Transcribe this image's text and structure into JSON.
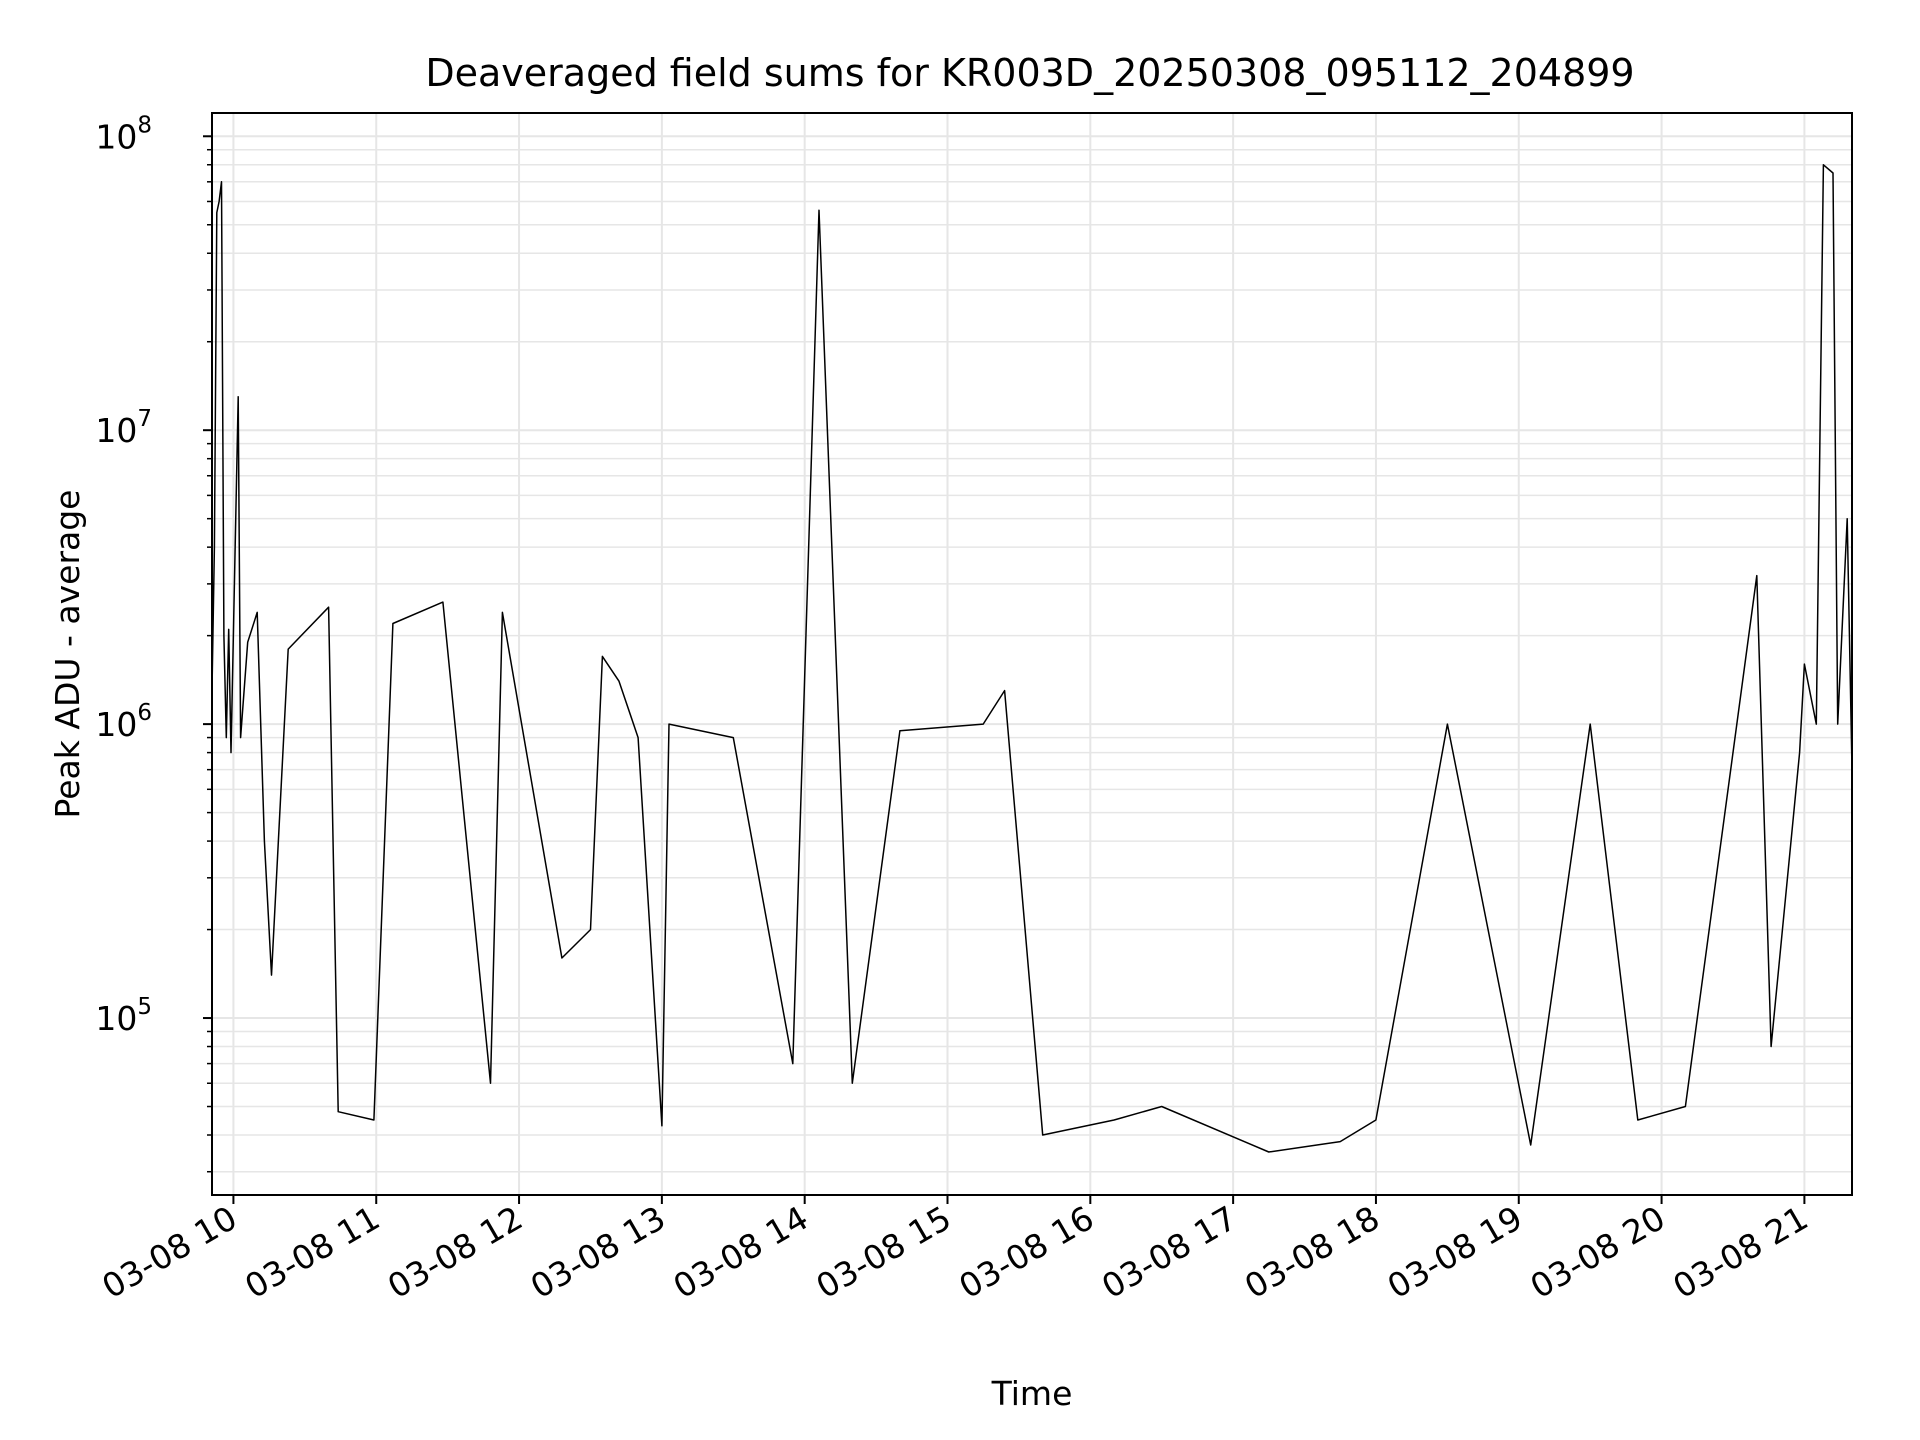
{
  "chart_data": {
    "type": "line",
    "title": "Deaveraged field sums for KR003D_20250308_095112_204899",
    "xlabel": "Time",
    "ylabel": "Peak ADU - average",
    "y_scale": "log",
    "ylim": [
      25000,
      120000000
    ],
    "xlim": [
      "2025-03-08 09:51",
      "2025-03-08 21:20"
    ],
    "grid": true,
    "x_ticks": [
      {
        "t": "2025-03-08 10:00",
        "label": "03-08 10"
      },
      {
        "t": "2025-03-08 11:00",
        "label": "03-08 11"
      },
      {
        "t": "2025-03-08 12:00",
        "label": "03-08 12"
      },
      {
        "t": "2025-03-08 13:00",
        "label": "03-08 13"
      },
      {
        "t": "2025-03-08 14:00",
        "label": "03-08 14"
      },
      {
        "t": "2025-03-08 15:00",
        "label": "03-08 15"
      },
      {
        "t": "2025-03-08 16:00",
        "label": "03-08 16"
      },
      {
        "t": "2025-03-08 17:00",
        "label": "03-08 17"
      },
      {
        "t": "2025-03-08 18:00",
        "label": "03-08 18"
      },
      {
        "t": "2025-03-08 19:00",
        "label": "03-08 19"
      },
      {
        "t": "2025-03-08 20:00",
        "label": "03-08 20"
      },
      {
        "t": "2025-03-08 21:00",
        "label": "03-08 21"
      }
    ],
    "y_ticks": [
      {
        "value": 100000,
        "base": "10",
        "exp": "5"
      },
      {
        "value": 1000000,
        "base": "10",
        "exp": "6"
      },
      {
        "value": 10000000,
        "base": "10",
        "exp": "7"
      },
      {
        "value": 100000000,
        "base": "10",
        "exp": "8"
      }
    ],
    "line_color": "#000000",
    "grid_color": "#e6e6e6",
    "series": [
      {
        "points": [
          [
            "2025-03-08 09:51",
            1300000
          ],
          [
            "2025-03-08 09:52",
            4000000
          ],
          [
            "2025-03-08 09:53",
            55000000
          ],
          [
            "2025-03-08 09:54",
            60000000
          ],
          [
            "2025-03-08 09:55",
            70000000
          ],
          [
            "2025-03-08 09:56",
            2000000
          ],
          [
            "2025-03-08 09:57",
            900000
          ],
          [
            "2025-03-08 09:58",
            2100000
          ],
          [
            "2025-03-08 09:59",
            800000
          ],
          [
            "2025-03-08 10:02",
            13000000
          ],
          [
            "2025-03-08 10:03",
            900000
          ],
          [
            "2025-03-08 10:06",
            1900000
          ],
          [
            "2025-03-08 10:10",
            2400000
          ],
          [
            "2025-03-08 10:13",
            400000
          ],
          [
            "2025-03-08 10:16",
            140000
          ],
          [
            "2025-03-08 10:23",
            1800000
          ],
          [
            "2025-03-08 10:40",
            2500000
          ],
          [
            "2025-03-08 10:44",
            48000
          ],
          [
            "2025-03-08 10:59",
            45000
          ],
          [
            "2025-03-08 11:07",
            2200000
          ],
          [
            "2025-03-08 11:28",
            2600000
          ],
          [
            "2025-03-08 11:48",
            60000
          ],
          [
            "2025-03-08 11:53",
            2400000
          ],
          [
            "2025-03-08 12:18",
            160000
          ],
          [
            "2025-03-08 12:30",
            200000
          ],
          [
            "2025-03-08 12:35",
            1700000
          ],
          [
            "2025-03-08 12:42",
            1400000
          ],
          [
            "2025-03-08 12:50",
            900000
          ],
          [
            "2025-03-08 13:00",
            43000
          ],
          [
            "2025-03-08 13:03",
            1000000
          ],
          [
            "2025-03-08 13:30",
            900000
          ],
          [
            "2025-03-08 13:55",
            70000
          ],
          [
            "2025-03-08 14:06",
            56000000
          ],
          [
            "2025-03-08 14:20",
            60000
          ],
          [
            "2025-03-08 14:40",
            950000
          ],
          [
            "2025-03-08 15:15",
            1000000
          ],
          [
            "2025-03-08 15:24",
            1300000
          ],
          [
            "2025-03-08 15:40",
            40000
          ],
          [
            "2025-03-08 16:10",
            45000
          ],
          [
            "2025-03-08 16:30",
            50000
          ],
          [
            "2025-03-08 17:15",
            35000
          ],
          [
            "2025-03-08 17:45",
            38000
          ],
          [
            "2025-03-08 18:00",
            45000
          ],
          [
            "2025-03-08 18:30",
            1000000
          ],
          [
            "2025-03-08 19:05",
            37000
          ],
          [
            "2025-03-08 19:30",
            1000000
          ],
          [
            "2025-03-08 19:50",
            45000
          ],
          [
            "2025-03-08 20:10",
            50000
          ],
          [
            "2025-03-08 20:40",
            3200000
          ],
          [
            "2025-03-08 20:46",
            80000
          ],
          [
            "2025-03-08 20:58",
            800000
          ],
          [
            "2025-03-08 21:00",
            1600000
          ],
          [
            "2025-03-08 21:05",
            1000000
          ],
          [
            "2025-03-08 21:08",
            80000000
          ],
          [
            "2025-03-08 21:12",
            75000000
          ],
          [
            "2025-03-08 21:14",
            1000000
          ],
          [
            "2025-03-08 21:18",
            5000000
          ],
          [
            "2025-03-08 21:20",
            700000
          ]
        ]
      }
    ]
  }
}
